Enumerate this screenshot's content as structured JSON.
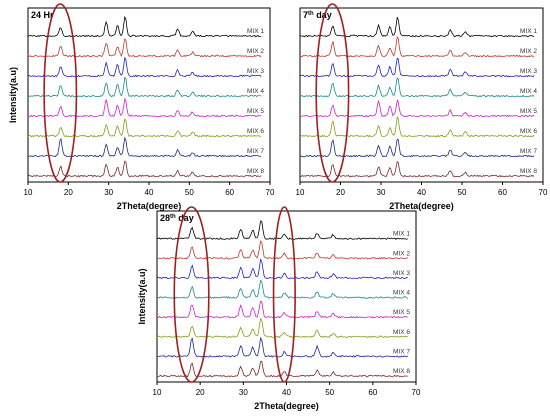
{
  "chart_data": [
    {
      "type": "line",
      "title": "24 Hr",
      "xlabel": "2Theta(degree)",
      "ylabel": "Intensity(a.u)",
      "xlim": [
        10,
        70
      ],
      "x_ticks": [
        10,
        20,
        30,
        40,
        50,
        60,
        70
      ],
      "grid": false,
      "series": [
        {
          "name": "MIX 1",
          "color": "#000000",
          "peaks": [
            [
              18.1,
              0.45
            ],
            [
              29.4,
              0.75
            ],
            [
              32.2,
              0.55
            ],
            [
              34.1,
              1.0
            ],
            [
              47.1,
              0.35
            ],
            [
              50.8,
              0.25
            ]
          ]
        },
        {
          "name": "MIX 2",
          "color": "#c0392b",
          "peaks": [
            [
              18.1,
              0.55
            ],
            [
              29.4,
              0.7
            ],
            [
              32.2,
              0.5
            ],
            [
              34.1,
              0.95
            ],
            [
              47.1,
              0.3
            ],
            [
              50.8,
              0.2
            ]
          ]
        },
        {
          "name": "MIX 3",
          "color": "#2020c0",
          "peaks": [
            [
              18.1,
              0.5
            ],
            [
              29.4,
              0.7
            ],
            [
              32.2,
              0.6
            ],
            [
              34.1,
              1.0
            ],
            [
              47.1,
              0.3
            ],
            [
              50.8,
              0.2
            ]
          ]
        },
        {
          "name": "MIX 4",
          "color": "#1a8a8a",
          "peaks": [
            [
              18.1,
              0.55
            ],
            [
              29.4,
              0.7
            ],
            [
              32.2,
              0.65
            ],
            [
              34.1,
              1.0
            ],
            [
              47.1,
              0.35
            ],
            [
              50.8,
              0.2
            ]
          ]
        },
        {
          "name": "MIX 5",
          "color": "#d020d0",
          "peaks": [
            [
              18.1,
              0.5
            ],
            [
              29.4,
              0.85
            ],
            [
              32.2,
              0.55
            ],
            [
              34.1,
              0.9
            ],
            [
              47.1,
              0.3
            ],
            [
              50.8,
              0.2
            ]
          ]
        },
        {
          "name": "MIX 6",
          "color": "#8a9a1a",
          "peaks": [
            [
              18.1,
              0.45
            ],
            [
              29.4,
              0.6
            ],
            [
              32.2,
              0.55
            ],
            [
              34.1,
              0.95
            ],
            [
              47.1,
              0.3
            ],
            [
              50.8,
              0.2
            ]
          ]
        },
        {
          "name": "MIX 7",
          "color": "#1a2a8a",
          "peaks": [
            [
              18.1,
              0.9
            ],
            [
              29.4,
              0.65
            ],
            [
              32.2,
              0.5
            ],
            [
              34.1,
              1.0
            ],
            [
              47.1,
              0.35
            ],
            [
              50.8,
              0.2
            ]
          ]
        },
        {
          "name": "MIX 8",
          "color": "#7a2a2a",
          "peaks": [
            [
              18.1,
              0.5
            ],
            [
              29.4,
              0.6
            ],
            [
              32.2,
              0.45
            ],
            [
              34.1,
              0.8
            ],
            [
              47.1,
              0.3
            ],
            [
              50.8,
              0.2
            ]
          ]
        }
      ],
      "annotations": [
        {
          "shape": "ellipse",
          "x_center": 18,
          "x_range": [
            14,
            22
          ]
        }
      ]
    },
    {
      "type": "line",
      "title": "7th day",
      "title_superscript": "th",
      "title_main": "7",
      "title_suffix": " day",
      "xlabel": "2Theta(degree)",
      "ylabel": "",
      "xlim": [
        10,
        70
      ],
      "x_ticks": [
        10,
        20,
        30,
        40,
        50,
        60,
        70
      ],
      "grid": false,
      "series": [
        {
          "name": "MIX 1",
          "color": "#000000",
          "peaks": [
            [
              18.1,
              0.5
            ],
            [
              29.4,
              0.55
            ],
            [
              32.2,
              0.5
            ],
            [
              34.1,
              1.0
            ],
            [
              47.1,
              0.35
            ],
            [
              50.8,
              0.2
            ]
          ]
        },
        {
          "name": "MIX 2",
          "color": "#c0392b",
          "peaks": [
            [
              18.1,
              0.75
            ],
            [
              29.4,
              0.55
            ],
            [
              32.2,
              0.45
            ],
            [
              34.1,
              1.0
            ],
            [
              47.1,
              0.3
            ],
            [
              50.8,
              0.2
            ]
          ]
        },
        {
          "name": "MIX 3",
          "color": "#2020c0",
          "peaks": [
            [
              18.1,
              0.7
            ],
            [
              29.4,
              0.6
            ],
            [
              32.2,
              0.5
            ],
            [
              34.1,
              1.0
            ],
            [
              47.1,
              0.35
            ],
            [
              50.8,
              0.2
            ]
          ]
        },
        {
          "name": "MIX 4",
          "color": "#1a8a8a",
          "peaks": [
            [
              18.1,
              0.7
            ],
            [
              29.4,
              0.55
            ],
            [
              32.2,
              0.5
            ],
            [
              34.1,
              1.0
            ],
            [
              47.1,
              0.35
            ],
            [
              50.8,
              0.2
            ]
          ]
        },
        {
          "name": "MIX 5",
          "color": "#d020d0",
          "peaks": [
            [
              18.1,
              0.6
            ],
            [
              29.4,
              0.8
            ],
            [
              32.2,
              0.5
            ],
            [
              34.1,
              0.85
            ],
            [
              47.1,
              0.3
            ],
            [
              50.8,
              0.2
            ]
          ]
        },
        {
          "name": "MIX 6",
          "color": "#8a9a1a",
          "peaks": [
            [
              18.1,
              0.8
            ],
            [
              29.4,
              0.5
            ],
            [
              32.2,
              0.45
            ],
            [
              34.1,
              1.0
            ],
            [
              47.1,
              0.3
            ],
            [
              50.8,
              0.2
            ]
          ]
        },
        {
          "name": "MIX 7",
          "color": "#1a2a8a",
          "peaks": [
            [
              18.1,
              0.85
            ],
            [
              29.4,
              0.55
            ],
            [
              32.2,
              0.5
            ],
            [
              34.1,
              0.95
            ],
            [
              47.1,
              0.35
            ],
            [
              50.8,
              0.2
            ]
          ]
        },
        {
          "name": "MIX 8",
          "color": "#7a2a2a",
          "peaks": [
            [
              18.1,
              0.6
            ],
            [
              29.4,
              0.5
            ],
            [
              32.2,
              0.45
            ],
            [
              34.1,
              0.8
            ],
            [
              47.1,
              0.3
            ],
            [
              50.8,
              0.2
            ]
          ]
        }
      ],
      "annotations": [
        {
          "shape": "ellipse",
          "x_center": 18,
          "x_range": [
            14,
            22
          ]
        }
      ]
    },
    {
      "type": "line",
      "title": "28th day",
      "title_superscript": "th",
      "title_main": "28",
      "title_suffix": " day",
      "xlabel": "2Theta(degree)",
      "ylabel": "Intensity(a.u)",
      "xlim": [
        10,
        70
      ],
      "x_ticks": [
        10,
        20,
        30,
        40,
        50,
        60,
        70
      ],
      "grid": false,
      "series": [
        {
          "name": "MIX 1",
          "color": "#000000",
          "peaks": [
            [
              18.1,
              0.6
            ],
            [
              29.4,
              0.5
            ],
            [
              32.2,
              0.45
            ],
            [
              34.1,
              1.0
            ],
            [
              39.5,
              0.25
            ],
            [
              47.1,
              0.3
            ],
            [
              50.8,
              0.2
            ]
          ]
        },
        {
          "name": "MIX 2",
          "color": "#c0392b",
          "peaks": [
            [
              18.1,
              0.6
            ],
            [
              29.4,
              0.5
            ],
            [
              32.2,
              0.45
            ],
            [
              34.1,
              0.95
            ],
            [
              39.5,
              0.25
            ],
            [
              47.1,
              0.3
            ],
            [
              50.8,
              0.2
            ]
          ]
        },
        {
          "name": "MIX 3",
          "color": "#2020c0",
          "peaks": [
            [
              18.1,
              0.65
            ],
            [
              29.4,
              0.55
            ],
            [
              32.2,
              0.5
            ],
            [
              34.1,
              1.0
            ],
            [
              39.5,
              0.25
            ],
            [
              47.1,
              0.35
            ],
            [
              50.8,
              0.2
            ]
          ]
        },
        {
          "name": "MIX 4",
          "color": "#1a8a8a",
          "peaks": [
            [
              18.1,
              0.55
            ],
            [
              29.4,
              0.5
            ],
            [
              32.2,
              0.45
            ],
            [
              34.1,
              1.0
            ],
            [
              39.5,
              0.25
            ],
            [
              47.1,
              0.3
            ],
            [
              50.8,
              0.2
            ]
          ]
        },
        {
          "name": "MIX 5",
          "color": "#d020d0",
          "peaks": [
            [
              18.1,
              0.7
            ],
            [
              29.4,
              0.6
            ],
            [
              32.2,
              0.5
            ],
            [
              34.1,
              0.9
            ],
            [
              39.5,
              0.25
            ],
            [
              47.1,
              0.3
            ],
            [
              50.8,
              0.2
            ]
          ]
        },
        {
          "name": "MIX 6",
          "color": "#8a9a1a",
          "peaks": [
            [
              18.1,
              0.6
            ],
            [
              29.4,
              0.5
            ],
            [
              32.2,
              0.45
            ],
            [
              34.1,
              1.0
            ],
            [
              39.5,
              0.25
            ],
            [
              47.1,
              0.35
            ],
            [
              50.8,
              0.2
            ]
          ]
        },
        {
          "name": "MIX 7",
          "color": "#1a2a8a",
          "peaks": [
            [
              18.1,
              1.0
            ],
            [
              29.4,
              0.6
            ],
            [
              32.2,
              0.5
            ],
            [
              34.1,
              1.0
            ],
            [
              39.5,
              0.25
            ],
            [
              47.1,
              0.55
            ],
            [
              50.8,
              0.2
            ]
          ]
        },
        {
          "name": "MIX 8",
          "color": "#7a2a2a",
          "peaks": [
            [
              18.1,
              0.7
            ],
            [
              29.4,
              0.5
            ],
            [
              32.2,
              0.45
            ],
            [
              34.1,
              0.85
            ],
            [
              39.5,
              0.25
            ],
            [
              47.1,
              0.3
            ],
            [
              50.8,
              0.2
            ]
          ]
        }
      ],
      "annotations": [
        {
          "shape": "ellipse",
          "x_center": 18,
          "x_range": [
            14,
            22
          ]
        },
        {
          "shape": "ellipse",
          "x_center": 39.5,
          "x_range": [
            37,
            42
          ]
        }
      ]
    }
  ],
  "annotation_color": "#a02020"
}
